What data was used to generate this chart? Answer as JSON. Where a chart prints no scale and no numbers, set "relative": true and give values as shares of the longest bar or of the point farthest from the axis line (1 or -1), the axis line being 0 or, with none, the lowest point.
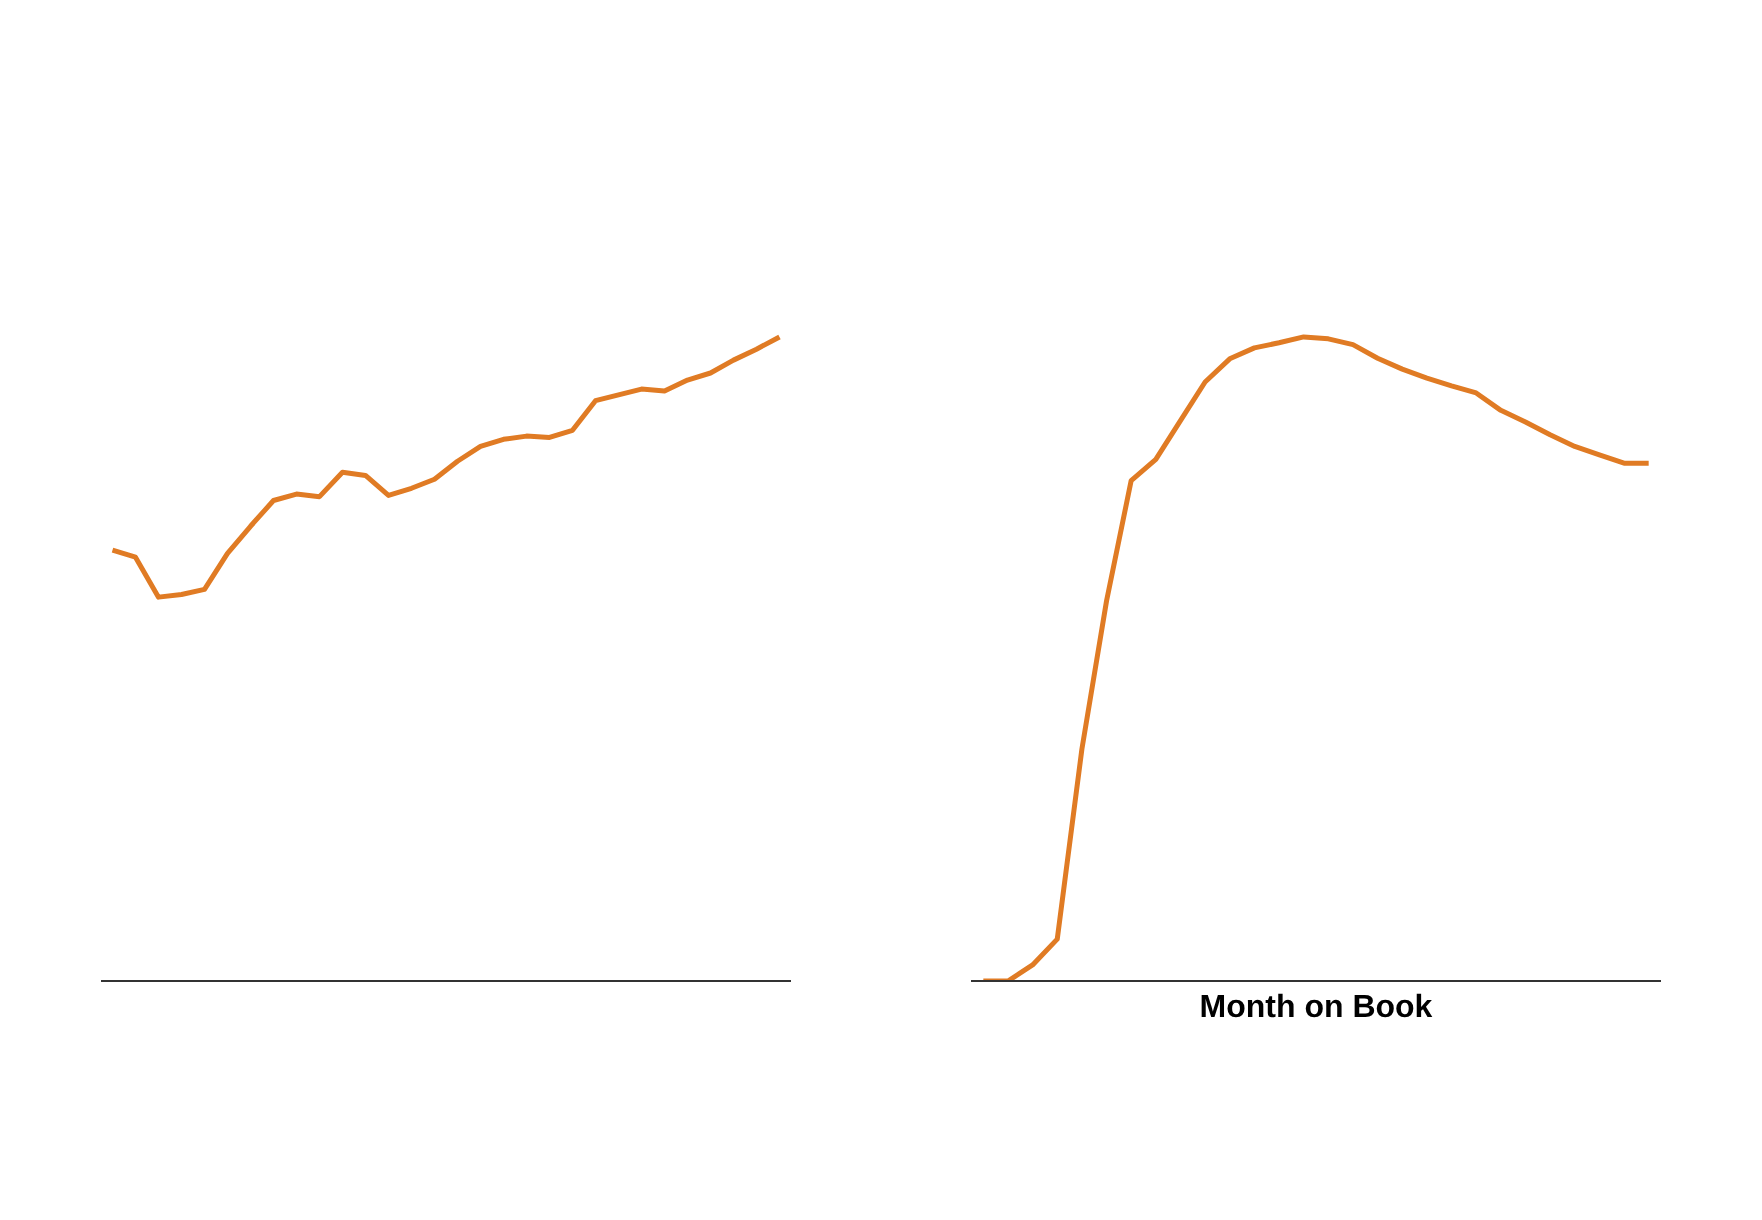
{
  "chart_data": [
    {
      "type": "line",
      "relative": true,
      "categories": [
        null,
        null,
        null,
        null,
        null,
        null,
        null,
        null,
        null,
        null,
        null,
        null,
        null,
        null,
        null,
        null,
        null,
        null,
        null,
        null,
        null,
        null,
        null,
        null,
        null,
        null,
        null,
        null,
        null,
        null
      ],
      "series": [
        {
          "color": "#e07b24",
          "values": [
            0.669,
            0.658,
            0.596,
            0.6,
            0.608,
            0.664,
            0.706,
            0.746,
            0.756,
            0.752,
            0.79,
            0.785,
            0.754,
            0.765,
            0.779,
            0.807,
            0.83,
            0.841,
            0.846,
            0.844,
            0.855,
            0.901,
            0.91,
            0.919,
            0.916,
            0.933,
            0.944,
            0.964,
            0.981,
            1
          ]
        }
      ]
    },
    {
      "type": "line",
      "relative": true,
      "xlabel": "Month on Book",
      "categories": [
        null,
        null,
        null,
        null,
        null,
        null,
        null,
        null,
        null,
        null,
        null,
        null,
        null,
        null,
        null,
        null,
        null,
        null,
        null,
        null,
        null,
        null,
        null,
        null,
        null,
        null,
        null,
        null
      ],
      "series": [
        {
          "color": "#e07b24",
          "values": [
            0,
            0,
            0.025,
            0.065,
            0.36,
            0.59,
            0.777,
            0.81,
            0.87,
            0.93,
            0.966,
            0.983,
            0.991,
            1,
            0.997,
            0.988,
            0.967,
            0.95,
            0.936,
            0.924,
            0.913,
            0.886,
            0.868,
            0.848,
            0.83,
            0.817,
            0.804,
            0.804
          ]
        }
      ]
    }
  ]
}
